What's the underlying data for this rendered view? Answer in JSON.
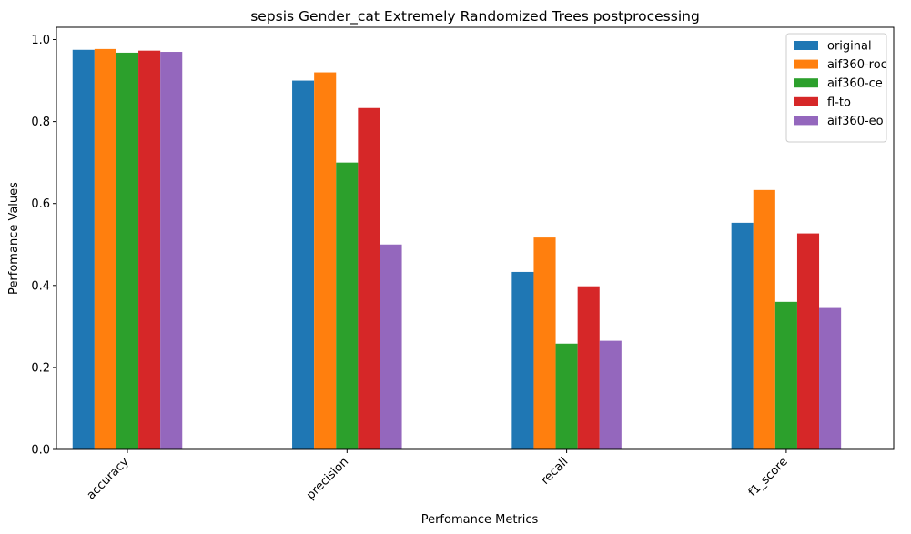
{
  "chart_data": {
    "type": "bar",
    "title": "sepsis Gender_cat Extremely Randomized Trees postprocessing",
    "xlabel": "Perfomance Metrics",
    "ylabel": "Perfomance Values",
    "categories": [
      "accuracy",
      "precision",
      "recall",
      "f1_score"
    ],
    "ylim": [
      0,
      1.03
    ],
    "yticks": [
      "0.0",
      "0.2",
      "0.4",
      "0.6",
      "0.8",
      "1.0"
    ],
    "legend_position": "top-right",
    "grid": false,
    "series": [
      {
        "name": "original",
        "color": "#1f77b4",
        "values": [
          0.975,
          0.9,
          0.433,
          0.553
        ]
      },
      {
        "name": "aif360-roc",
        "color": "#ff7f0e",
        "values": [
          0.977,
          0.92,
          0.517,
          0.633
        ]
      },
      {
        "name": "aif360-ce",
        "color": "#2ca02c",
        "values": [
          0.968,
          0.7,
          0.258,
          0.36
        ]
      },
      {
        "name": "fl-to",
        "color": "#d62728",
        "values": [
          0.973,
          0.833,
          0.398,
          0.527
        ]
      },
      {
        "name": "aif360-eo",
        "color": "#9467bd",
        "values": [
          0.97,
          0.5,
          0.265,
          0.345
        ]
      }
    ]
  }
}
